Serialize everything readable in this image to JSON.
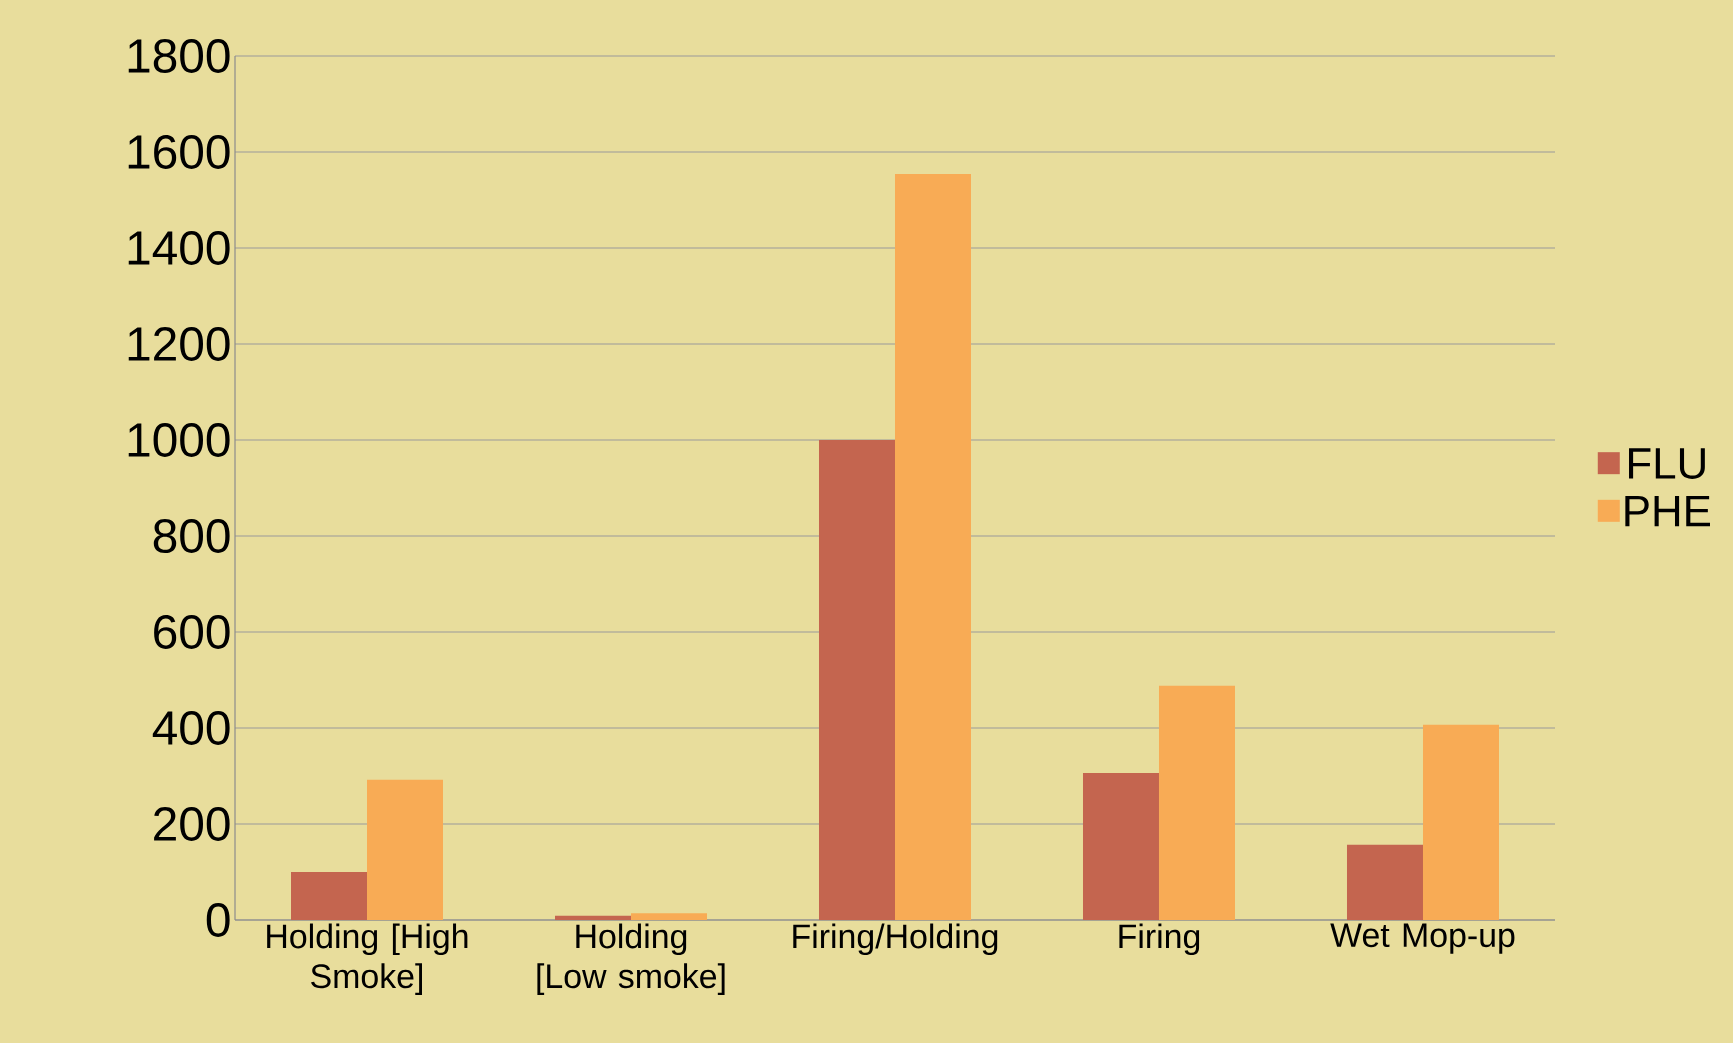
{
  "chart_data": {
    "type": "bar",
    "categories": [
      "Holding [High Smoke]",
      "Holding [Low smoke]",
      "Firing/Holding",
      "Firing",
      "Wet Mop-up"
    ],
    "series": [
      {
        "name": "FLU",
        "color": "#c4654f",
        "values": [
          100,
          9,
          1000,
          306,
          157
        ]
      },
      {
        "name": "PHE",
        "color": "#f8ab55",
        "values": [
          292,
          14,
          1554,
          488,
          407
        ]
      }
    ],
    "ylim": [
      0,
      1800
    ],
    "yticks": [
      0,
      200,
      400,
      600,
      800,
      1000,
      1200,
      1400,
      1600,
      1800
    ],
    "grid": "y",
    "legend": "right"
  }
}
